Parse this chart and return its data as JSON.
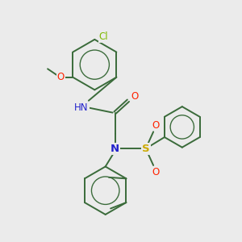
{
  "background_color": "#ebebeb",
  "bond_color": "#3a6b3a",
  "atom_colors": {
    "Cl": "#7db800",
    "O": "#ff2200",
    "N": "#2222cc",
    "H": "#888888",
    "S": "#ccaa00",
    "C": "#3a6b3a"
  },
  "bond_width": 1.4
}
